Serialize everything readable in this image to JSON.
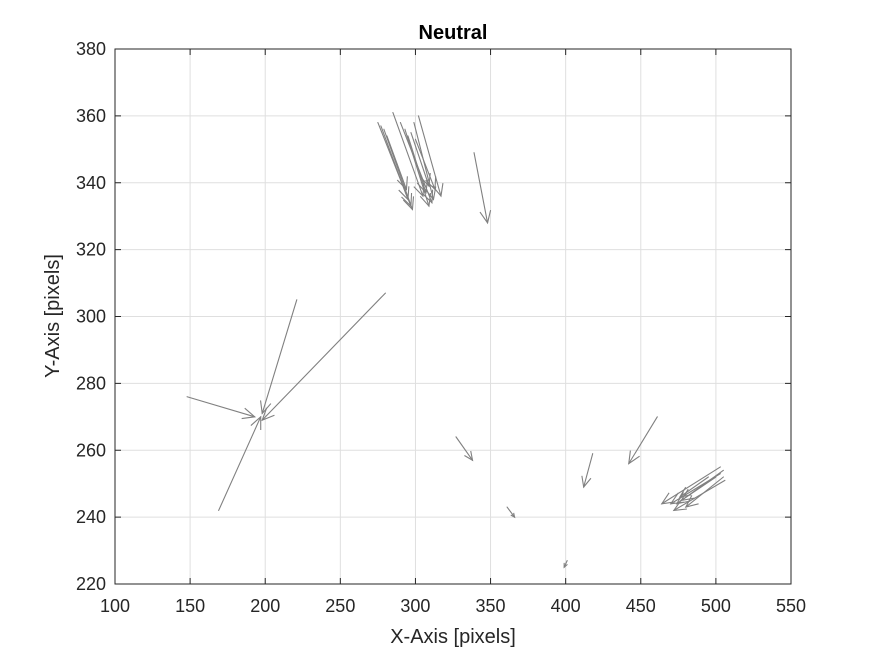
{
  "chart_data": {
    "type": "quiver",
    "title": "Neutral",
    "xlabel": "X-Axis [pixels]",
    "ylabel": "Y-Axis [pixels]",
    "xlim": [
      100,
      550
    ],
    "ylim": [
      220,
      380
    ],
    "x_ticks": [
      "100",
      "150",
      "200",
      "250",
      "300",
      "350",
      "400",
      "450",
      "500",
      "550"
    ],
    "y_ticks": [
      "220",
      "240",
      "260",
      "280",
      "300",
      "320",
      "340",
      "360",
      "380"
    ],
    "grid": true,
    "arrow_color": "#808080",
    "vectors": [
      {
        "x0": 275,
        "y0": 358,
        "x1": 297,
        "y1": 333
      },
      {
        "x0": 277,
        "y0": 357,
        "x1": 295,
        "y1": 335
      },
      {
        "x0": 279,
        "y0": 356,
        "x1": 298,
        "y1": 332
      },
      {
        "x0": 281,
        "y0": 354,
        "x1": 294,
        "y1": 338
      },
      {
        "x0": 285,
        "y0": 361,
        "x1": 305,
        "y1": 336
      },
      {
        "x0": 290,
        "y0": 358,
        "x1": 311,
        "y1": 334
      },
      {
        "x0": 293,
        "y0": 356,
        "x1": 309,
        "y1": 333
      },
      {
        "x0": 295,
        "y0": 354,
        "x1": 307,
        "y1": 337
      },
      {
        "x0": 299,
        "y0": 358,
        "x1": 312,
        "y1": 335
      },
      {
        "x0": 302,
        "y0": 360,
        "x1": 317,
        "y1": 336
      },
      {
        "x0": 297,
        "y0": 355,
        "x1": 309,
        "y1": 339
      },
      {
        "x0": 300,
        "y0": 353,
        "x1": 313,
        "y1": 338
      },
      {
        "x0": 339,
        "y0": 349,
        "x1": 348,
        "y1": 328
      },
      {
        "x0": 280,
        "y0": 307,
        "x1": 198,
        "y1": 269
      },
      {
        "x0": 221,
        "y0": 305,
        "x1": 198,
        "y1": 271
      },
      {
        "x0": 148,
        "y0": 276,
        "x1": 193,
        "y1": 270
      },
      {
        "x0": 169,
        "y0": 242,
        "x1": 197,
        "y1": 270
      },
      {
        "x0": 327,
        "y0": 264,
        "x1": 338,
        "y1": 257
      },
      {
        "x0": 361,
        "y0": 243,
        "x1": 366,
        "y1": 240
      },
      {
        "x0": 401,
        "y0": 227,
        "x1": 399,
        "y1": 225
      },
      {
        "x0": 418,
        "y0": 259,
        "x1": 412,
        "y1": 249
      },
      {
        "x0": 461,
        "y0": 270,
        "x1": 442,
        "y1": 256
      },
      {
        "x0": 503,
        "y0": 255,
        "x1": 464,
        "y1": 244
      },
      {
        "x0": 505,
        "y0": 254,
        "x1": 474,
        "y1": 244
      },
      {
        "x0": 503,
        "y0": 253,
        "x1": 470,
        "y1": 244
      },
      {
        "x0": 506,
        "y0": 251,
        "x1": 472,
        "y1": 242
      },
      {
        "x0": 500,
        "y0": 252,
        "x1": 477,
        "y1": 245
      },
      {
        "x0": 495,
        "y0": 252,
        "x1": 476,
        "y1": 246
      },
      {
        "x0": 505,
        "y0": 252,
        "x1": 480,
        "y1": 243
      }
    ]
  }
}
